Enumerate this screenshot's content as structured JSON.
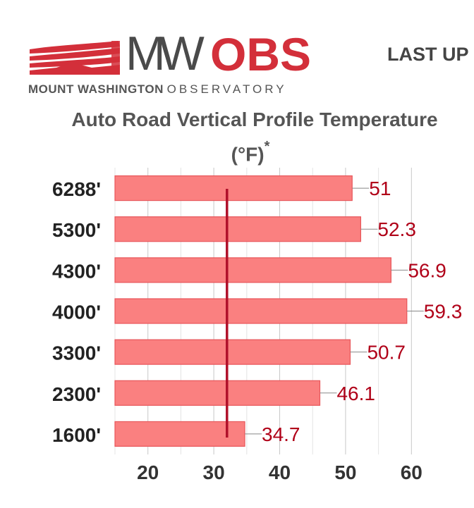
{
  "header": {
    "logo_mw": "MW",
    "logo_obs": "OBS",
    "logo_sub_strong": "MOUNT WASHINGTON",
    "logo_sub_light": "OBSERVATORY",
    "last_updated_label": "LAST UP"
  },
  "colors": {
    "brand_red": "#d32f3a",
    "bar_fill": "#fa8080",
    "bar_stroke": "#e8565a",
    "label_color": "#b00018",
    "marker_color": "#b0102a"
  },
  "chart_data": {
    "type": "bar",
    "orientation": "horizontal",
    "title": "Auto Road Vertical Profile Temperature",
    "unit": "(°F)",
    "unit_note": "*",
    "categories": [
      "6288'",
      "5300'",
      "4300'",
      "4000'",
      "3300'",
      "2300'",
      "1600'"
    ],
    "values": [
      51,
      52.3,
      56.9,
      59.3,
      50.7,
      46.1,
      34.7
    ],
    "data_labels": [
      "51",
      "52.3",
      "56.9",
      "59.3",
      "50.7",
      "46.1",
      "34.7"
    ],
    "xlim": [
      15,
      62
    ],
    "xticks": [
      20,
      30,
      40,
      50,
      60
    ],
    "xtick_labels": [
      "20",
      "30",
      "40",
      "50",
      "60"
    ],
    "grid": true,
    "freezing_line": 32
  }
}
